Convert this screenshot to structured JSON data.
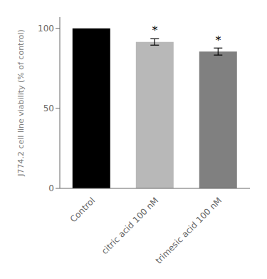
{
  "chart_data": {
    "type": "bar",
    "categories": [
      "Control",
      "citric acid 100 nM",
      "trimesic acid 100 nM"
    ],
    "values": [
      100.0,
      91.5,
      85.5
    ],
    "errors": [
      0.0,
      2.0,
      2.2
    ],
    "colors": [
      "#000000",
      "#b8b8b8",
      "#808080"
    ],
    "ylabel": "J774.2 cell line viability (% of control)",
    "ylim": [
      0,
      107
    ],
    "yticks": [
      0,
      50,
      100
    ],
    "grid": false,
    "annotations": [
      {
        "text": "*",
        "x": "citric acid 100 nM",
        "y": 94.0
      },
      {
        "text": "*",
        "x": "trimesic acid 100 nM",
        "y": 88.0
      }
    ]
  }
}
